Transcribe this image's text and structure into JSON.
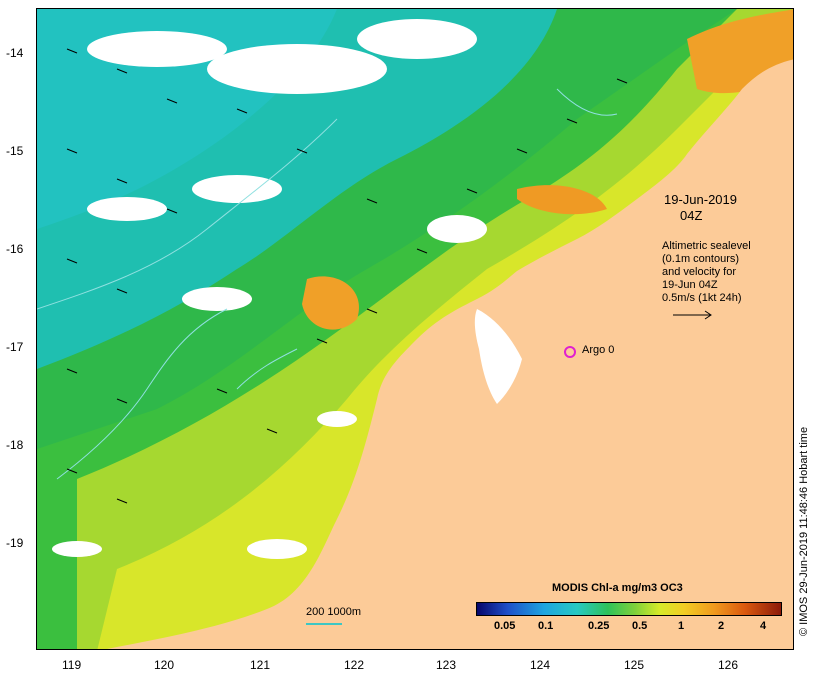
{
  "map": {
    "lat_ticks": [
      "-14",
      "-15",
      "-16",
      "-17",
      "-18",
      "-19"
    ],
    "lon_ticks": [
      "119",
      "120",
      "121",
      "122",
      "123",
      "124",
      "125",
      "126"
    ],
    "date_line1": "19-Jun-2019",
    "date_line2": "04Z",
    "legend_lines": [
      "Altimetric sealevel",
      "(0.1m contours)",
      "and velocity for",
      "19-Jun 04Z",
      "0.5m/s (1kt 24h)"
    ],
    "argo_label": "Argo 0",
    "scale_label": "200  1000m",
    "credit": "© IMOS 29-Jun-2019 11:48:46 Hobart time"
  },
  "colorbar": {
    "title": "MODIS Chl-a mg/m3 OC3",
    "labels": [
      "0.05",
      "0.1",
      "0.25",
      "0.5",
      "1",
      "2",
      "4"
    ]
  },
  "colors": {
    "land": "#fccb98",
    "cloud": "#ffffff",
    "ocean_cyan": "#1fbfb0",
    "ocean_green": "#2fb84a",
    "chl_yellow": "#d8e62a",
    "chl_orange": "#f0a028",
    "contour": "#8fe0e0",
    "argo": "#e020d0"
  }
}
